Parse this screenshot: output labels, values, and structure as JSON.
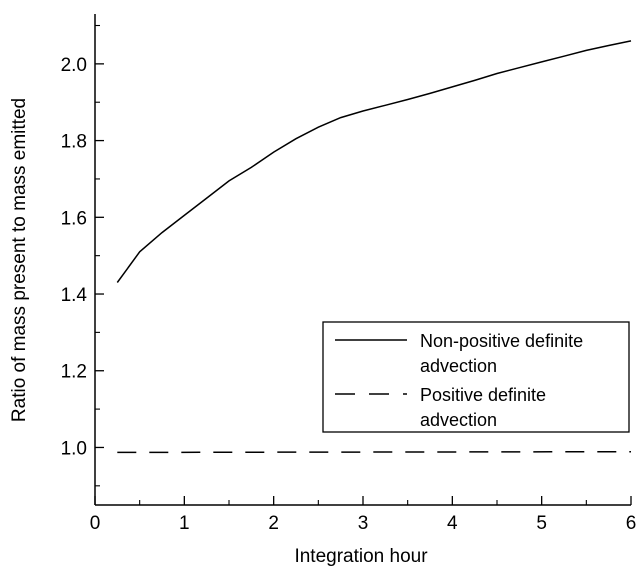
{
  "chart_data": {
    "type": "line",
    "title": "",
    "xlabel": "Integration hour",
    "ylabel": "Ratio of mass present to mass emitted",
    "xlim": [
      0,
      6
    ],
    "ylim": [
      0.85,
      2.13
    ],
    "x_ticks": [
      0,
      1,
      2,
      3,
      4,
      5,
      6
    ],
    "x_tick_labels": [
      "0",
      "1",
      "2",
      "3",
      "4",
      "5",
      "6"
    ],
    "y_ticks": [
      1.0,
      1.2,
      1.4,
      1.6,
      1.8,
      2.0
    ],
    "y_tick_labels": [
      "1.0",
      "1.2",
      "1.4",
      "1.6",
      "1.8",
      "2.0"
    ],
    "y_minor_step": 0.1,
    "x_minor_step": 0.5,
    "grid": false,
    "legend_position": "lower-right",
    "series": [
      {
        "name": "Non-positive definite advection",
        "legend_lines": [
          "Non-positive definite",
          "advection"
        ],
        "style": "solid",
        "color": "#000000",
        "x": [
          0.25,
          0.5,
          0.75,
          1.0,
          1.25,
          1.5,
          1.75,
          2.0,
          2.25,
          2.5,
          2.75,
          3.0,
          3.25,
          3.5,
          3.75,
          4.0,
          4.25,
          4.5,
          4.75,
          5.0,
          5.25,
          5.5,
          5.75,
          6.0
        ],
        "values": [
          1.43,
          1.51,
          1.56,
          1.605,
          1.65,
          1.695,
          1.73,
          1.77,
          1.805,
          1.835,
          1.86,
          1.877,
          1.892,
          1.907,
          1.923,
          1.94,
          1.957,
          1.975,
          1.99,
          2.005,
          2.02,
          2.035,
          2.048,
          2.06
        ]
      },
      {
        "name": "Positive definite advection",
        "legend_lines": [
          "Positive definite",
          "advection"
        ],
        "style": "dashed",
        "color": "#000000",
        "x": [
          0.25,
          6.0
        ],
        "values": [
          0.987,
          0.989
        ]
      }
    ]
  }
}
